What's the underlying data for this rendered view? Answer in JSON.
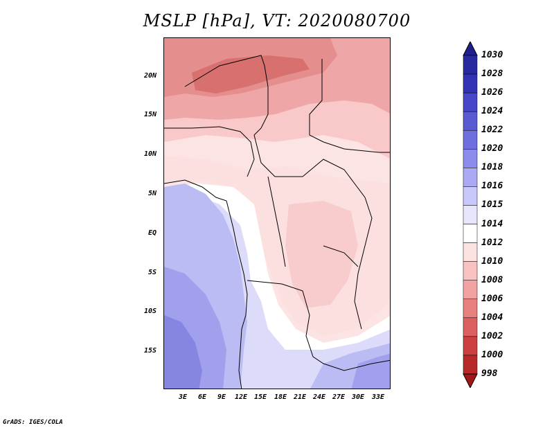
{
  "title": "MSLP [hPa], VT: 2020080700",
  "footer": "GrADS: IGES/COLA",
  "map": {
    "latitude_labels": [
      "20N",
      "15N",
      "10N",
      "5N",
      "EQ",
      "5S",
      "10S",
      "15S"
    ],
    "longitude_labels": [
      "3E",
      "6E",
      "9E",
      "12E",
      "15E",
      "18E",
      "21E",
      "24E",
      "27E",
      "30E",
      "33E"
    ],
    "field": "mean sea level pressure",
    "units": "hPa"
  },
  "colorbar": {
    "levels": [
      "1030",
      "1028",
      "1026",
      "1024",
      "1022",
      "1020",
      "1018",
      "1016",
      "1015",
      "1014",
      "1012",
      "1010",
      "1008",
      "1006",
      "1004",
      "1002",
      "1000",
      "998"
    ],
    "colors": [
      "#1e1e8c",
      "#2828a0",
      "#3232b4",
      "#4646c8",
      "#5a5ad2",
      "#6e6ede",
      "#8c8cec",
      "#aaaaf4",
      "#c8c8fa",
      "#e6e6fc",
      "#ffffff",
      "#fde2e2",
      "#f9c2c2",
      "#f3a2a2",
      "#e98080",
      "#dc6060",
      "#cc4040",
      "#b82a2a",
      "#a01818"
    ]
  }
}
